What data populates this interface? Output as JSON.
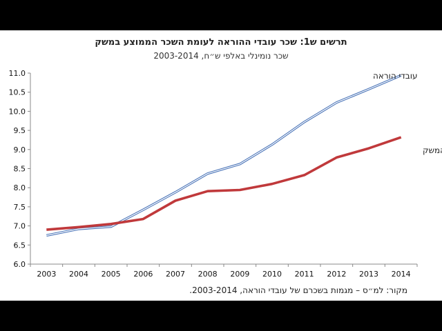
{
  "chart_data": {
    "type": "line",
    "title": "תרשים ש1: שכר עובדי ההוראה לעומת השכר הממוצע במשק",
    "subtitle": "שכר נומינלי באלפי ש״ח, 2003-2014",
    "source": "מקור: למ״ס – מגמות בשכרם של עובדי הוראה, 2003-2014.",
    "x": [
      "2003",
      "2004",
      "2005",
      "2006",
      "2007",
      "2008",
      "2009",
      "2010",
      "2011",
      "2012",
      "2013",
      "2014"
    ],
    "ylim": [
      6.0,
      11.0
    ],
    "yticks": [
      "6.0",
      "6.5",
      "7.0",
      "7.5",
      "8.0",
      "8.5",
      "9.0",
      "9.5",
      "10.0",
      "10.5",
      "11.0"
    ],
    "grid": false,
    "series": [
      {
        "name": "עובדי הוראה",
        "values": [
          6.75,
          6.92,
          6.98,
          7.42,
          7.88,
          8.37,
          8.62,
          9.13,
          9.72,
          10.23,
          10.58,
          10.94
        ],
        "color": "#4a74b8"
      },
      {
        "name": "כלל המשק",
        "values": [
          6.9,
          6.97,
          7.05,
          7.18,
          7.66,
          7.91,
          7.94,
          8.1,
          8.33,
          8.79,
          9.03,
          9.32
        ],
        "color": "#c0393b"
      }
    ]
  }
}
